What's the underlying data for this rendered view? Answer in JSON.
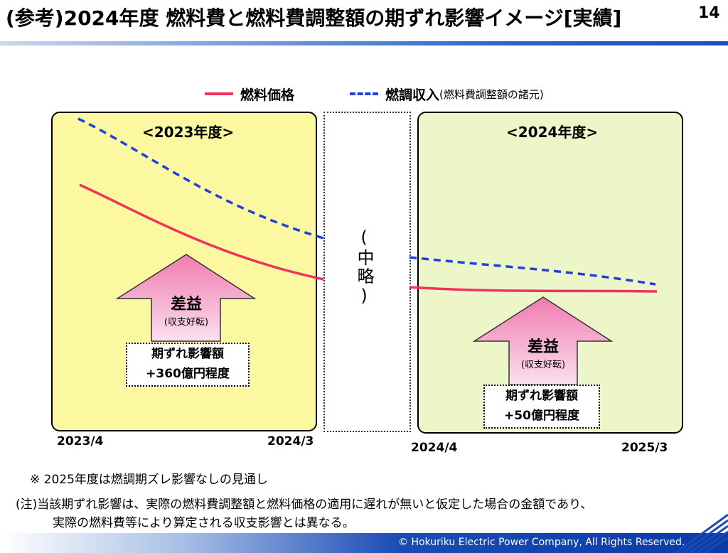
{
  "header": {
    "title": "(参考)2024年度 燃料費と燃料費調整額の期ずれ影響イメージ[実績]",
    "page_number": "14"
  },
  "legend": {
    "fuel_price": {
      "label": "燃料価格",
      "color": "#f0325c",
      "style": "solid"
    },
    "fuel_adjust_income": {
      "label": "燃調収入",
      "sub_label": "(燃料費調整額の諸元)",
      "color": "#1f3fe0",
      "style": "dashed"
    }
  },
  "panel_2023": {
    "title": "<2023年度>",
    "start_label": "2023/4",
    "end_label": "2024/3",
    "background": "#fbf8a1",
    "arrow": {
      "main": "差益",
      "sub": "(収支好転)"
    },
    "impact_box": {
      "line1": "期ずれ影響額",
      "line2": "+360億円程度"
    }
  },
  "middle": {
    "text": "(中略)"
  },
  "panel_2024": {
    "title": "<2024年度>",
    "start_label": "2024/4",
    "end_label": "2025/3",
    "background": "#edf6c8",
    "arrow": {
      "main": "差益",
      "sub": "(収支好転)"
    },
    "impact_box": {
      "line1": "期ずれ影響額",
      "line2": "+50億円程度"
    }
  },
  "notes": {
    "note1": "※ 2025年度は燃調期ズレ影響なしの見通し",
    "note2_line1": "(注)当該期ずれ影響は、実際の燃料費調整額と燃料価格の適用に遅れが無いと仮定した場合の金額であり、",
    "note2_line2": "実際の燃料費等により算定される収支影響とは異なる。"
  },
  "footer": {
    "copyright": "© Hokuriku Electric Power Company, All Rights Reserved."
  }
}
